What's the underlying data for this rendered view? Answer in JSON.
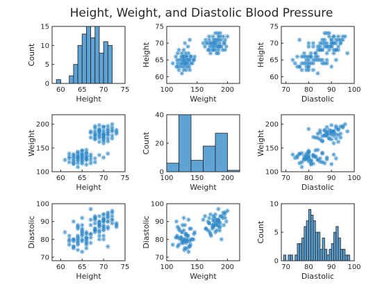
{
  "figure": {
    "title": "Height, Weight, and Diastolic Blood Pressure"
  },
  "chart_data": {
    "type": "scatter",
    "title": "Height, Weight, and Diastolic Blood Pressure",
    "variables": [
      "Height",
      "Weight",
      "Diastolic"
    ],
    "count_label": "Count",
    "axes": {
      "Height": {
        "range": [
          58,
          75
        ],
        "ticks": [
          60,
          65,
          70,
          75
        ]
      },
      "Weight": {
        "range": [
          100,
          220
        ],
        "ticks": [
          100,
          150,
          200
        ]
      },
      "Diastolic": {
        "range": [
          68,
          100
        ],
        "ticks": [
          70,
          80,
          90,
          100
        ]
      }
    },
    "diag_hist": {
      "Height": {
        "edges": [
          59,
          60,
          61,
          62,
          63,
          64,
          65,
          66,
          67,
          68,
          69,
          70,
          71,
          72
        ],
        "counts": [
          1,
          0,
          0,
          2,
          5,
          10,
          13,
          15,
          12,
          15,
          8,
          11,
          10
        ],
        "ylim": [
          0,
          15
        ],
        "yticks": [
          0,
          5,
          10,
          15
        ]
      },
      "Weight": {
        "edges": [
          100,
          120,
          140,
          160,
          180,
          200,
          220
        ],
        "counts": [
          6,
          40,
          8,
          18,
          27,
          1
        ],
        "ylim": [
          0,
          40
        ],
        "yticks": [
          0,
          20,
          40
        ]
      },
      "Diastolic": {
        "edges": [
          68,
          69,
          70,
          71,
          72,
          73,
          74,
          75,
          76,
          77,
          78,
          79,
          80,
          81,
          82,
          83,
          84,
          85,
          86,
          87,
          88,
          89,
          90,
          91,
          92,
          93,
          94,
          95,
          96,
          97,
          98,
          99
        ],
        "counts": [
          0,
          1,
          0,
          1,
          1,
          0,
          1,
          3,
          3,
          4,
          6,
          7,
          9,
          8,
          7,
          5,
          5,
          2,
          4,
          2,
          1,
          2,
          3,
          5,
          6,
          4,
          2,
          2,
          1,
          1,
          0
        ],
        "ylim": [
          0,
          10
        ],
        "yticks": [
          0,
          5,
          10
        ]
      }
    },
    "records": [
      {
        "Height": 64,
        "Weight": 132,
        "Diastolic": 78
      },
      {
        "Height": 65,
        "Weight": 125,
        "Diastolic": 84
      },
      {
        "Height": 66,
        "Weight": 140,
        "Diastolic": 80
      },
      {
        "Height": 63,
        "Weight": 118,
        "Diastolic": 76
      },
      {
        "Height": 64,
        "Weight": 135,
        "Diastolic": 82
      },
      {
        "Height": 65,
        "Weight": 130,
        "Diastolic": 88
      },
      {
        "Height": 66,
        "Weight": 128,
        "Diastolic": 79
      },
      {
        "Height": 64,
        "Weight": 123,
        "Diastolic": 81
      },
      {
        "Height": 63,
        "Weight": 130,
        "Diastolic": 75
      },
      {
        "Height": 65,
        "Weight": 138,
        "Diastolic": 86
      },
      {
        "Height": 62,
        "Weight": 120,
        "Diastolic": 77
      },
      {
        "Height": 66,
        "Weight": 132,
        "Diastolic": 83
      },
      {
        "Height": 64,
        "Weight": 142,
        "Diastolic": 80
      },
      {
        "Height": 67,
        "Weight": 136,
        "Diastolic": 91
      },
      {
        "Height": 63,
        "Weight": 126,
        "Diastolic": 79
      },
      {
        "Height": 65,
        "Weight": 121,
        "Diastolic": 85
      },
      {
        "Height": 66,
        "Weight": 127,
        "Diastolic": 78
      },
      {
        "Height": 62,
        "Weight": 132,
        "Diastolic": 82
      },
      {
        "Height": 64,
        "Weight": 118,
        "Diastolic": 87
      },
      {
        "Height": 65,
        "Weight": 144,
        "Diastolic": 80
      },
      {
        "Height": 63,
        "Weight": 137,
        "Diastolic": 76
      },
      {
        "Height": 66,
        "Weight": 124,
        "Diastolic": 81
      },
      {
        "Height": 64,
        "Weight": 129,
        "Diastolic": 74
      },
      {
        "Height": 67,
        "Weight": 131,
        "Diastolic": 83
      },
      {
        "Height": 65,
        "Weight": 134,
        "Diastolic": 79
      },
      {
        "Height": 61,
        "Weight": 125,
        "Diastolic": 84
      },
      {
        "Height": 63,
        "Weight": 116,
        "Diastolic": 90
      },
      {
        "Height": 66,
        "Weight": 139,
        "Diastolic": 77
      },
      {
        "Height": 64,
        "Weight": 126,
        "Diastolic": 88
      },
      {
        "Height": 65,
        "Weight": 117,
        "Diastolic": 82
      },
      {
        "Height": 62,
        "Weight": 128,
        "Diastolic": 80
      },
      {
        "Height": 66,
        "Weight": 133,
        "Diastolic": 75
      },
      {
        "Height": 64,
        "Weight": 140,
        "Diastolic": 86
      },
      {
        "Height": 63,
        "Weight": 122,
        "Diastolic": 80
      },
      {
        "Height": 65,
        "Weight": 128,
        "Diastolic": 92
      },
      {
        "Height": 64,
        "Weight": 131,
        "Diastolic": 79
      },
      {
        "Height": 66,
        "Weight": 115,
        "Diastolic": 81
      },
      {
        "Height": 67,
        "Weight": 125,
        "Diastolic": 78
      },
      {
        "Height": 65,
        "Weight": 145,
        "Diastolic": 83
      },
      {
        "Height": 63,
        "Weight": 134,
        "Diastolic": 80
      },
      {
        "Height": 68,
        "Weight": 128,
        "Diastolic": 85
      },
      {
        "Height": 62,
        "Weight": 138,
        "Diastolic": 79
      },
      {
        "Height": 69,
        "Weight": 135,
        "Diastolic": 82
      },
      {
        "Height": 70,
        "Weight": 130,
        "Diastolic": 80
      },
      {
        "Height": 68,
        "Weight": 120,
        "Diastolic": 86
      },
      {
        "Height": 71,
        "Weight": 138,
        "Diastolic": 76
      },
      {
        "Height": 64,
        "Weight": 110,
        "Diastolic": 77
      },
      {
        "Height": 66,
        "Weight": 146,
        "Diastolic": 84
      },
      {
        "Height": 65,
        "Weight": 136,
        "Diastolic": 73
      },
      {
        "Height": 67,
        "Weight": 118,
        "Diastolic": 81
      },
      {
        "Height": 69,
        "Weight": 175,
        "Diastolic": 88
      },
      {
        "Height": 70,
        "Weight": 182,
        "Diastolic": 91
      },
      {
        "Height": 68,
        "Weight": 168,
        "Diastolic": 85
      },
      {
        "Height": 71,
        "Weight": 190,
        "Diastolic": 93
      },
      {
        "Height": 69,
        "Weight": 185,
        "Diastolic": 90
      },
      {
        "Height": 70,
        "Weight": 176,
        "Diastolic": 87
      },
      {
        "Height": 72,
        "Weight": 193,
        "Diastolic": 95
      },
      {
        "Height": 68,
        "Weight": 180,
        "Diastolic": 84
      },
      {
        "Height": 71,
        "Weight": 170,
        "Diastolic": 92
      },
      {
        "Height": 69,
        "Weight": 188,
        "Diastolic": 89
      },
      {
        "Height": 70,
        "Weight": 195,
        "Diastolic": 94
      },
      {
        "Height": 67,
        "Weight": 172,
        "Diastolic": 83
      },
      {
        "Height": 72,
        "Weight": 185,
        "Diastolic": 91
      },
      {
        "Height": 70,
        "Weight": 165,
        "Diastolic": 86
      },
      {
        "Height": 69,
        "Weight": 178,
        "Diastolic": 88
      },
      {
        "Height": 71,
        "Weight": 183,
        "Diastolic": 90
      },
      {
        "Height": 68,
        "Weight": 192,
        "Diastolic": 92
      },
      {
        "Height": 70,
        "Weight": 187,
        "Diastolic": 85
      },
      {
        "Height": 73,
        "Weight": 180,
        "Diastolic": 89
      },
      {
        "Height": 69,
        "Weight": 163,
        "Diastolic": 93
      },
      {
        "Height": 71,
        "Weight": 177,
        "Diastolic": 87
      },
      {
        "Height": 70,
        "Weight": 172,
        "Diastolic": 94
      },
      {
        "Height": 68,
        "Weight": 185,
        "Diastolic": 91
      },
      {
        "Height": 72,
        "Weight": 200,
        "Diastolic": 96
      },
      {
        "Height": 69,
        "Weight": 171,
        "Diastolic": 84
      },
      {
        "Height": 67,
        "Weight": 182,
        "Diastolic": 88
      },
      {
        "Height": 71,
        "Weight": 186,
        "Diastolic": 90
      },
      {
        "Height": 70,
        "Weight": 179,
        "Diastolic": 92
      },
      {
        "Height": 68,
        "Weight": 175,
        "Diastolic": 86
      },
      {
        "Height": 72,
        "Weight": 170,
        "Diastolic": 89
      },
      {
        "Height": 69,
        "Weight": 190,
        "Diastolic": 80
      },
      {
        "Height": 71,
        "Weight": 196,
        "Diastolic": 95
      },
      {
        "Height": 70,
        "Weight": 168,
        "Diastolic": 90
      },
      {
        "Height": 73,
        "Weight": 188,
        "Diastolic": 87
      },
      {
        "Height": 68,
        "Weight": 177,
        "Diastolic": 93
      },
      {
        "Height": 69,
        "Weight": 182,
        "Diastolic": 85
      },
      {
        "Height": 72,
        "Weight": 176,
        "Diastolic": 91
      },
      {
        "Height": 70,
        "Weight": 194,
        "Diastolic": 88
      },
      {
        "Height": 67,
        "Weight": 185,
        "Diastolic": 97
      },
      {
        "Height": 71,
        "Weight": 164,
        "Diastolic": 86
      },
      {
        "Height": 69,
        "Weight": 198,
        "Diastolic": 90
      },
      {
        "Height": 70,
        "Weight": 173,
        "Diastolic": 82
      },
      {
        "Height": 72,
        "Weight": 188,
        "Diastolic": 93
      },
      {
        "Height": 68,
        "Weight": 170,
        "Diastolic": 89
      },
      {
        "Height": 71,
        "Weight": 180,
        "Diastolic": 94
      },
      {
        "Height": 69,
        "Weight": 186,
        "Diastolic": 87
      },
      {
        "Height": 70,
        "Weight": 160,
        "Diastolic": 91
      },
      {
        "Height": 73,
        "Weight": 184,
        "Diastolic": 88
      },
      {
        "Height": 68,
        "Weight": 196,
        "Diastolic": 92
      },
      {
        "Height": 70,
        "Weight": 178,
        "Diastolic": 90
      }
    ]
  }
}
